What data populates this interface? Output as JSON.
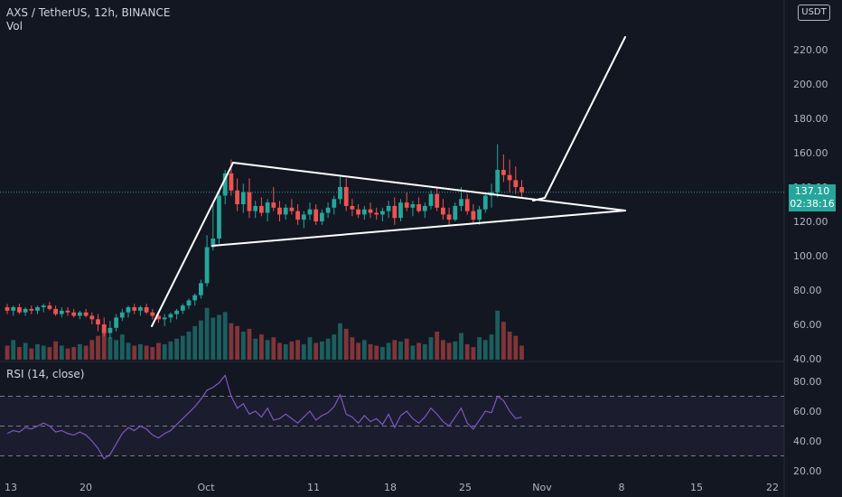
{
  "header": {
    "symbol_line": "AXS / TetherUS, 12h, BINANCE",
    "volume_label": "Vol",
    "rsi_label": "RSI (14, close)"
  },
  "currency_button": "USDT",
  "last_price": {
    "value": "137.10",
    "countdown": "02:38:16"
  },
  "colors": {
    "background": "#131722",
    "up": "#26a69a",
    "down": "#ef5350",
    "rsi_line": "#7e57c2",
    "drawing": "#ffffff"
  },
  "chart_data": [
    {
      "type": "candlestick",
      "title": "AXS / TetherUS, 12h, BINANCE",
      "y_ticks": [
        "220.00",
        "200.00",
        "180.00",
        "160.00",
        "140.00",
        "120.00",
        "100.00",
        "80.00",
        "60.00",
        "40.00"
      ],
      "x_ticks": [
        "13",
        "20",
        "Oct",
        "11",
        "18",
        "25",
        "Nov",
        "8",
        "15",
        "22"
      ],
      "ylim": [
        40,
        230
      ],
      "grid": false,
      "ohlc": [
        [
          70,
          72,
          66,
          68
        ],
        [
          68,
          71,
          65,
          70
        ],
        [
          70,
          72,
          66,
          67
        ],
        [
          67,
          70,
          65,
          69
        ],
        [
          69,
          71,
          66,
          68
        ],
        [
          68,
          71,
          66,
          70
        ],
        [
          70,
          72,
          67,
          71
        ],
        [
          71,
          73,
          68,
          69
        ],
        [
          69,
          71,
          65,
          66
        ],
        [
          66,
          70,
          64,
          68
        ],
        [
          68,
          70,
          65,
          67
        ],
        [
          67,
          69,
          64,
          65
        ],
        [
          65,
          68,
          63,
          67
        ],
        [
          67,
          69,
          64,
          65
        ],
        [
          65,
          67,
          60,
          63
        ],
        [
          63,
          66,
          56,
          60
        ],
        [
          60,
          64,
          53,
          55
        ],
        [
          55,
          62,
          52,
          58
        ],
        [
          58,
          66,
          56,
          64
        ],
        [
          64,
          69,
          62,
          67
        ],
        [
          67,
          71,
          64,
          70
        ],
        [
          70,
          72,
          66,
          68
        ],
        [
          68,
          71,
          65,
          70
        ],
        [
          70,
          72,
          66,
          67
        ],
        [
          67,
          69,
          63,
          65
        ],
        [
          65,
          67,
          61,
          63
        ],
        [
          63,
          66,
          59,
          64
        ],
        [
          64,
          67,
          61,
          66
        ],
        [
          66,
          69,
          63,
          68
        ],
        [
          68,
          72,
          66,
          71
        ],
        [
          71,
          75,
          69,
          74
        ],
        [
          74,
          78,
          71,
          77
        ],
        [
          77,
          86,
          75,
          84
        ],
        [
          84,
          112,
          82,
          105
        ],
        [
          105,
          131,
          103,
          110
        ],
        [
          110,
          138,
          107,
          135
        ],
        [
          135,
          150,
          130,
          148
        ],
        [
          148,
          156,
          135,
          138
        ],
        [
          138,
          145,
          126,
          130
        ],
        [
          130,
          142,
          125,
          137
        ],
        [
          137,
          145,
          122,
          126
        ],
        [
          126,
          132,
          122,
          129
        ],
        [
          129,
          134,
          123,
          125
        ],
        [
          125,
          133,
          120,
          131
        ],
        [
          131,
          140,
          126,
          128
        ],
        [
          128,
          132,
          120,
          124
        ],
        [
          124,
          130,
          121,
          128
        ],
        [
          128,
          133,
          124,
          126
        ],
        [
          126,
          130,
          118,
          121
        ],
        [
          121,
          126,
          116,
          124
        ],
        [
          124,
          131,
          121,
          127
        ],
        [
          127,
          130,
          118,
          120
        ],
        [
          120,
          127,
          118,
          125
        ],
        [
          125,
          131,
          122,
          128
        ],
        [
          128,
          135,
          124,
          133
        ],
        [
          133,
          146,
          130,
          140
        ],
        [
          140,
          145,
          126,
          129
        ],
        [
          129,
          133,
          123,
          127
        ],
        [
          127,
          130,
          122,
          124
        ],
        [
          124,
          129,
          121,
          127
        ],
        [
          127,
          131,
          122,
          125
        ],
        [
          125,
          128,
          121,
          124
        ],
        [
          124,
          128,
          120,
          126
        ],
        [
          126,
          132,
          122,
          129
        ],
        [
          129,
          134,
          118,
          122
        ],
        [
          122,
          133,
          120,
          131
        ],
        [
          131,
          137,
          126,
          128
        ],
        [
          128,
          132,
          123,
          130
        ],
        [
          130,
          134,
          125,
          126
        ],
        [
          126,
          131,
          122,
          129
        ],
        [
          129,
          138,
          127,
          136
        ],
        [
          136,
          140,
          126,
          128
        ],
        [
          128,
          133,
          121,
          124
        ],
        [
          124,
          128,
          118,
          121
        ],
        [
          121,
          131,
          120,
          129
        ],
        [
          129,
          140,
          126,
          133
        ],
        [
          133,
          136,
          124,
          126
        ],
        [
          126,
          130,
          119,
          121
        ],
        [
          121,
          129,
          118,
          127
        ],
        [
          127,
          136,
          125,
          135
        ],
        [
          135,
          142,
          128,
          137
        ],
        [
          137,
          165,
          134,
          150
        ],
        [
          150,
          159,
          143,
          147
        ],
        [
          147,
          156,
          137,
          144
        ],
        [
          144,
          152,
          136,
          140
        ],
        [
          140,
          144,
          134,
          137
        ]
      ],
      "volume": [
        10,
        14,
        9,
        12,
        8,
        11,
        10,
        9,
        13,
        10,
        8,
        9,
        11,
        10,
        14,
        17,
        22,
        16,
        14,
        18,
        12,
        10,
        11,
        10,
        9,
        12,
        11,
        13,
        15,
        17,
        20,
        24,
        28,
        37,
        30,
        32,
        34,
        26,
        24,
        20,
        22,
        15,
        18,
        14,
        16,
        12,
        11,
        13,
        14,
        11,
        16,
        12,
        13,
        15,
        18,
        26,
        22,
        16,
        12,
        14,
        11,
        10,
        9,
        12,
        14,
        13,
        15,
        10,
        12,
        11,
        16,
        20,
        14,
        12,
        13,
        19,
        11,
        9,
        16,
        14,
        18,
        35,
        27,
        20,
        17,
        10
      ],
      "rsi": [
        45,
        47,
        46,
        49,
        48,
        50,
        52,
        50,
        46,
        47,
        45,
        44,
        46,
        44,
        40,
        35,
        28,
        31,
        38,
        45,
        49,
        47,
        50,
        48,
        44,
        42,
        45,
        47,
        51,
        55,
        59,
        63,
        68,
        74,
        76,
        79,
        84,
        70,
        62,
        65,
        58,
        60,
        56,
        62,
        54,
        55,
        58,
        55,
        52,
        56,
        60,
        54,
        57,
        59,
        63,
        71,
        58,
        56,
        52,
        57,
        53,
        55,
        51,
        58,
        49,
        57,
        60,
        55,
        52,
        56,
        62,
        58,
        53,
        50,
        56,
        62,
        52,
        48,
        54,
        60,
        59,
        70,
        67,
        60,
        55,
        56
      ]
    }
  ]
}
